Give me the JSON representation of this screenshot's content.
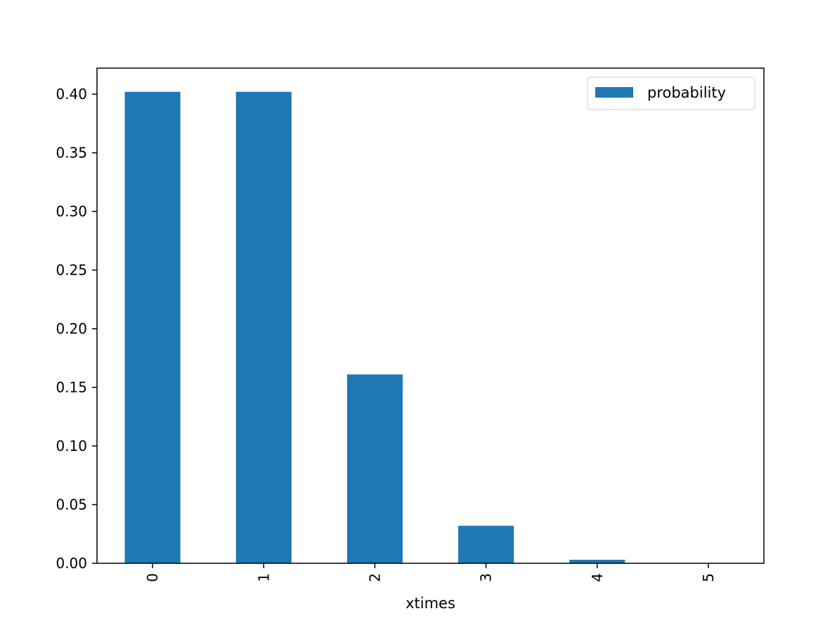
{
  "chart_data": {
    "type": "bar",
    "categories": [
      "0",
      "1",
      "2",
      "3",
      "4",
      "5"
    ],
    "series": [
      {
        "name": "probability",
        "values": [
          0.402,
          0.402,
          0.161,
          0.032,
          0.003,
          0.0001
        ],
        "color": "#1f77b4"
      }
    ],
    "title": "",
    "xlabel": "xtimes",
    "ylabel": "",
    "ylim": [
      0,
      0.4222
    ],
    "yticks": [
      0.0,
      0.05,
      0.1,
      0.15,
      0.2,
      0.25,
      0.3,
      0.35,
      0.4
    ],
    "ytick_labels": [
      "0.00",
      "0.05",
      "0.10",
      "0.15",
      "0.20",
      "0.25",
      "0.30",
      "0.35",
      "0.40"
    ],
    "grid": false,
    "legend": {
      "position": "top-right",
      "entries": [
        "probability"
      ]
    }
  }
}
